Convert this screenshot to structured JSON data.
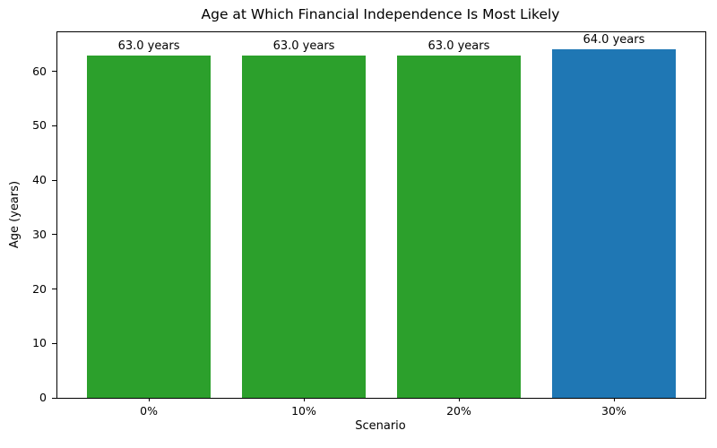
{
  "chart_data": {
    "type": "bar",
    "title": "Age at Which Financial Independence Is Most Likely",
    "xlabel": "Scenario",
    "ylabel": "Age (years)",
    "categories": [
      "0%",
      "10%",
      "20%",
      "30%"
    ],
    "values": [
      63.0,
      63.0,
      63.0,
      64.0
    ],
    "bar_labels": [
      "63.0 years",
      "63.0 years",
      "63.0 years",
      "64.0 years"
    ],
    "bar_colors": [
      "#2ca02c",
      "#2ca02c",
      "#2ca02c",
      "#1f77b4"
    ],
    "yticks": [
      0,
      10,
      20,
      30,
      40,
      50,
      60
    ],
    "ylim": [
      0,
      67.2
    ],
    "bar_width_fraction": 0.8,
    "grid": false,
    "legend": null,
    "spine_color": "#000000",
    "background_color": "#ffffff"
  }
}
